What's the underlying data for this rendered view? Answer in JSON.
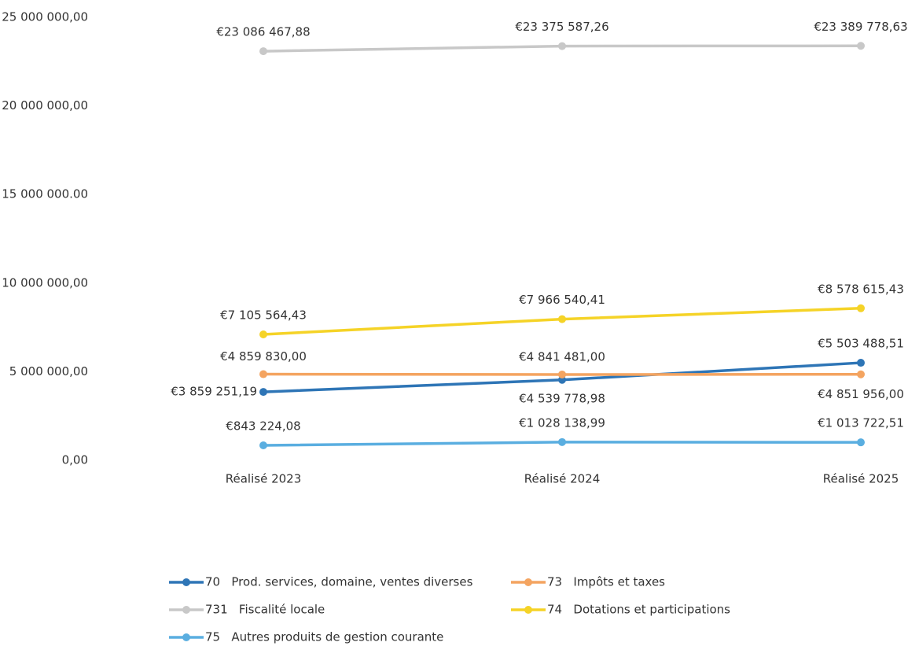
{
  "chart_data": {
    "type": "line",
    "categories": [
      "Réalisé 2023",
      "Réalisé 2024",
      "Réalisé 2025"
    ],
    "ylim": [
      0,
      25000000
    ],
    "yticks": [
      {
        "value": 0,
        "label": "0,00"
      },
      {
        "value": 5000000,
        "label": "5 000 000,00"
      },
      {
        "value": 10000000,
        "label": "10 000 000,00"
      },
      {
        "value": 15000000,
        "label": "15 000 000.00"
      },
      {
        "value": 20000000,
        "label": "20 000 000,00"
      },
      {
        "value": 25000000,
        "label": "25 000 000,00"
      }
    ],
    "grid": false,
    "legend": "bottom",
    "series": [
      {
        "name": "70   Prod. services, domaine, ventes diverses",
        "color": "#2e75b6",
        "values": [
          3859251.19,
          4539778.98,
          5503488.51
        ],
        "value_labels": [
          "€3 859 251,19",
          "€4 539 778,98",
          "€5 503 488,51"
        ]
      },
      {
        "name": "73   Impôts et taxes",
        "color": "#f4a460",
        "values": [
          4859830.0,
          4841481.0,
          4851956.0
        ],
        "value_labels": [
          "€4 859 830,00",
          "€4 841 481,00",
          "€4 851 956,00"
        ]
      },
      {
        "name": "731   Fiscalité locale",
        "color": "#c8c8c8",
        "values": [
          23086467.88,
          23375587.26,
          23389778.63
        ],
        "value_labels": [
          "€23 086 467,88",
          "€23 375 587,26",
          "€23 389 778,63"
        ]
      },
      {
        "name": "74   Dotations et participations",
        "color": "#f5d327",
        "values": [
          7105564.43,
          7966540.41,
          8578615.43
        ],
        "value_labels": [
          "€7 105 564,43",
          "€7 966 540,41",
          "€8 578 615,43"
        ]
      },
      {
        "name": "75   Autres produits de gestion courante",
        "color": "#5aaee0",
        "values": [
          843224.08,
          1028138.99,
          1013722.51
        ],
        "value_labels": [
          "€843 224,08",
          "€1 028 138,99",
          "€1 013 722,51"
        ]
      }
    ]
  }
}
